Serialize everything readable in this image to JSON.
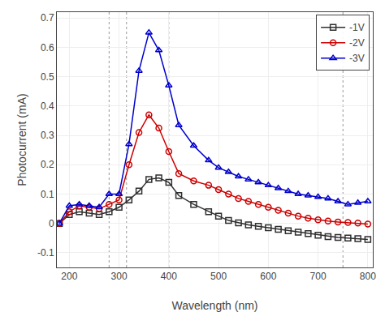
{
  "chart_data": {
    "type": "line",
    "xlabel": "Wavelength (nm)",
    "ylabel": "Photocurrent (mA)",
    "xlim": [
      175,
      810
    ],
    "ylim": [
      -0.15,
      0.72
    ],
    "xticks": [
      200,
      300,
      400,
      500,
      600,
      700,
      800
    ],
    "yticks": [
      -0.1,
      0,
      0.1,
      0.2,
      0.3,
      0.4,
      0.5,
      0.6,
      0.7
    ],
    "legend": "upper right",
    "vlines": [
      280,
      315,
      400,
      750
    ],
    "x": [
      180,
      200,
      220,
      240,
      260,
      280,
      300,
      320,
      340,
      360,
      380,
      400,
      420,
      450,
      480,
      500,
      520,
      540,
      560,
      580,
      600,
      620,
      640,
      660,
      680,
      700,
      720,
      740,
      760,
      780,
      800
    ],
    "series": [
      {
        "name": "-1V",
        "color": "#2f2f2f",
        "marker": "square",
        "values": [
          0.0,
          0.03,
          0.04,
          0.035,
          0.03,
          0.04,
          0.055,
          0.08,
          0.11,
          0.15,
          0.155,
          0.14,
          0.095,
          0.065,
          0.04,
          0.025,
          0.01,
          0.002,
          -0.005,
          -0.01,
          -0.015,
          -0.02,
          -0.025,
          -0.03,
          -0.035,
          -0.04,
          -0.045,
          -0.048,
          -0.05,
          -0.052,
          -0.055
        ]
      },
      {
        "name": "-2V",
        "color": "#cc0000",
        "marker": "circle",
        "values": [
          0.0,
          0.04,
          0.06,
          0.055,
          0.05,
          0.065,
          0.08,
          0.2,
          0.31,
          0.37,
          0.325,
          0.245,
          0.17,
          0.145,
          0.13,
          0.115,
          0.1,
          0.085,
          0.075,
          0.065,
          0.055,
          0.045,
          0.035,
          0.025,
          0.018,
          0.012,
          0.008,
          0.005,
          0.003,
          0.001,
          -0.002
        ]
      },
      {
        "name": "-3V",
        "color": "#0000cc",
        "marker": "triangle",
        "values": [
          0.0,
          0.06,
          0.065,
          0.06,
          0.055,
          0.1,
          0.1,
          0.27,
          0.52,
          0.65,
          0.59,
          0.47,
          0.335,
          0.265,
          0.215,
          0.19,
          0.175,
          0.16,
          0.15,
          0.14,
          0.13,
          0.12,
          0.11,
          0.1,
          0.095,
          0.09,
          0.085,
          0.075,
          0.065,
          0.07,
          0.075
        ]
      }
    ]
  }
}
